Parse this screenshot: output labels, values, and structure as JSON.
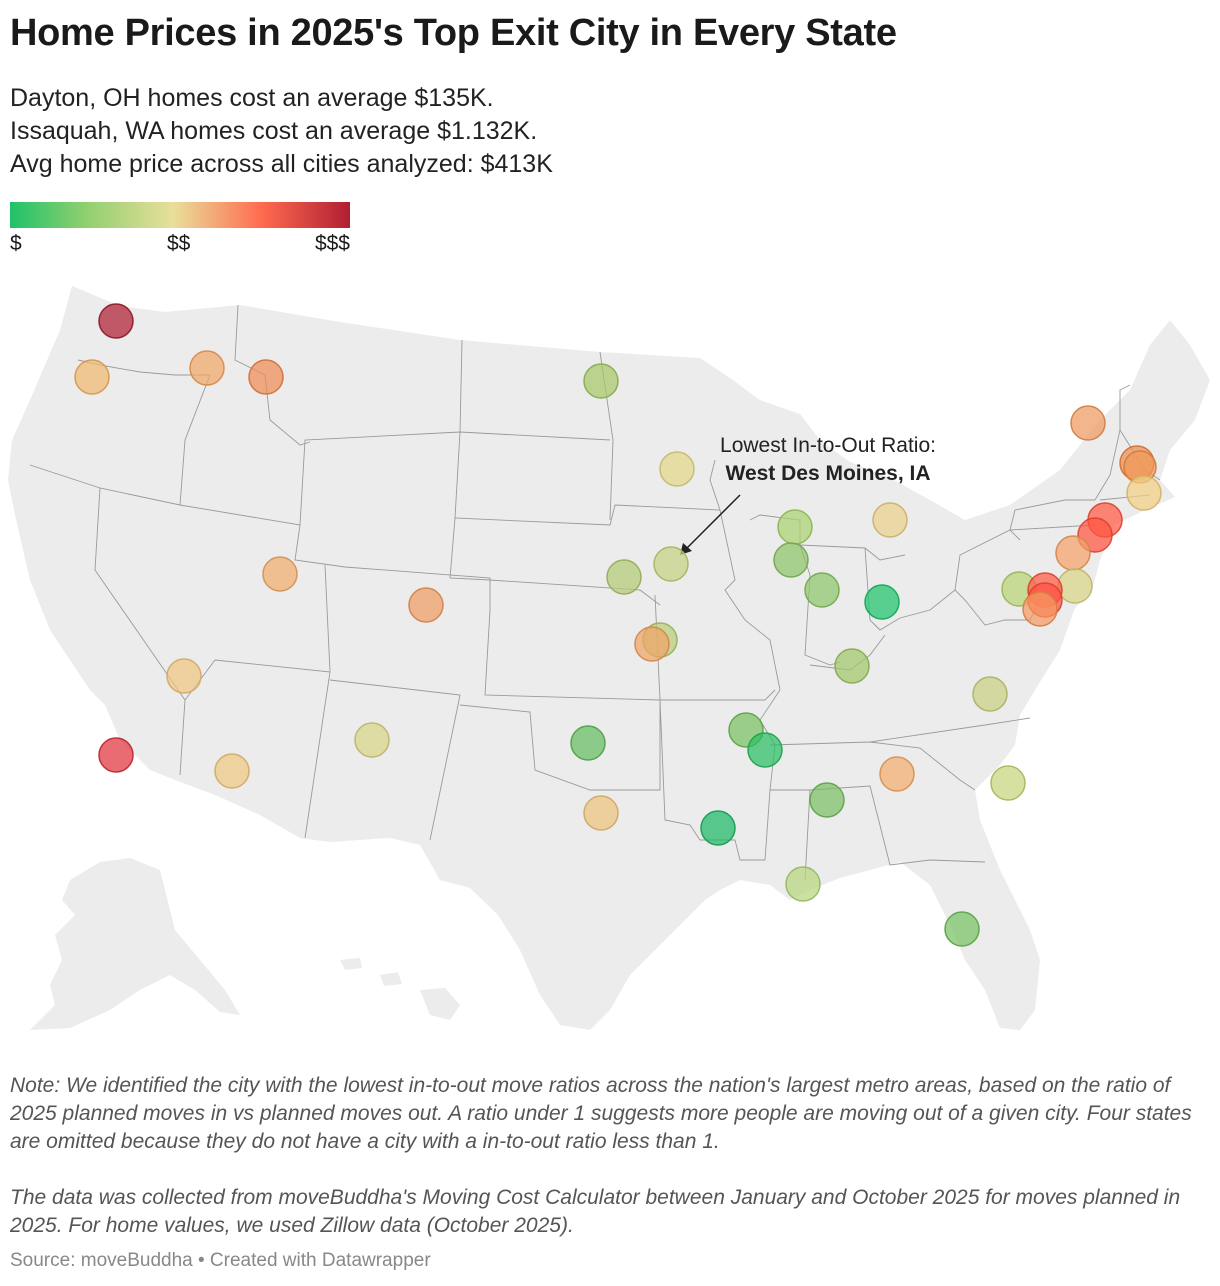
{
  "title": "Home Prices in 2025's Top Exit City in Every State",
  "subtitle": [
    "Dayton, OH homes cost an average $135K.",
    "Issaquah, WA homes cost an average $1.132K.",
    "Avg home price across all cities analyzed: $413K"
  ],
  "legend": {
    "low_label": "$",
    "mid_label": "$$",
    "high_label": "$$$",
    "colors": [
      "#1ec26b",
      "#8fcf6e",
      "#e9df9a",
      "#ff6b4f",
      "#b01e33"
    ]
  },
  "annotation": {
    "line1": "Lowest In-to-Out Ratio:",
    "line2": "West Des Moines, IA"
  },
  "notes": [
    "Note: We identified the city with the lowest in-to-out move ratios across the nation's largest metro areas, based on the ratio of 2025 planned moves in vs planned moves out. A ratio under 1 suggests more people are moving out of a given city. Four states are omitted because they do not have a city with a in-to-out ratio less than 1.",
    "The data was collected from moveBuddha's Moving Cost Calculator between January and October 2025 for moves planned in 2025. For home values, we used Zillow data (October 2025)."
  ],
  "source": "Source: moveBuddha • Created with Datawrapper",
  "map_colors": {
    "land": "#ececec",
    "state_border": "#9a9a9a"
  }
}
